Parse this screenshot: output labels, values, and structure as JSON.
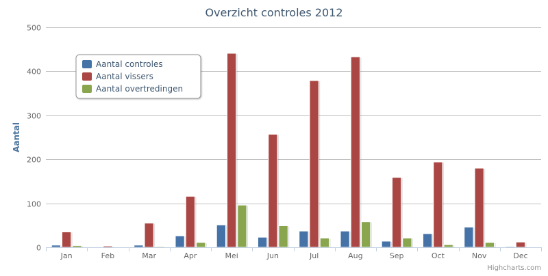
{
  "chart_data": {
    "type": "bar",
    "title": "Overzicht controles 2012",
    "xlabel": "",
    "ylabel": "Aantal",
    "ylim": [
      0,
      500
    ],
    "yticks": [
      0,
      100,
      200,
      300,
      400,
      500
    ],
    "categories": [
      "Jan",
      "Feb",
      "Mar",
      "Apr",
      "Mei",
      "Jun",
      "Jul",
      "Aug",
      "Sep",
      "Oct",
      "Nov",
      "Dec"
    ],
    "series": [
      {
        "name": "Aantal controles",
        "color": "#4572A7",
        "values": [
          5,
          0,
          5,
          26,
          51,
          23,
          37,
          37,
          14,
          31,
          46,
          2
        ]
      },
      {
        "name": "Aantal vissers",
        "color": "#AA4643",
        "values": [
          35,
          3,
          55,
          116,
          441,
          257,
          379,
          433,
          159,
          194,
          180,
          12
        ]
      },
      {
        "name": "Aantal overtredingen",
        "color": "#89A54E",
        "values": [
          4,
          0,
          2,
          11,
          96,
          49,
          21,
          58,
          21,
          6,
          11,
          0
        ]
      }
    ],
    "legend_position": "top-left",
    "grid": true
  },
  "credits": "Highcharts.com"
}
